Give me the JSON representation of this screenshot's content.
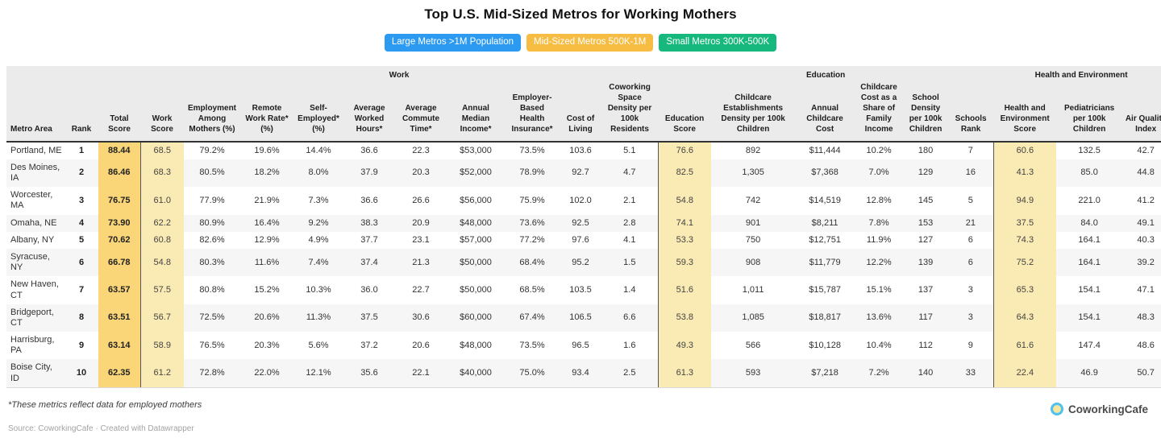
{
  "title": "Top U.S. Mid-Sized Metros for Working Mothers",
  "tabs": [
    {
      "name": "large-metros",
      "label": "Large Metros >1M Population",
      "color": "#2b9af0"
    },
    {
      "name": "mid-sized-metros",
      "label": "Mid-Sized Metros 500K-1M",
      "color": "#f7bc42"
    },
    {
      "name": "small-metros",
      "label": "Small Metros 300K-500K",
      "color": "#17b87e"
    }
  ],
  "colors": {
    "total_score_bg": "#fad678",
    "score_bg": "#faeab4",
    "header_bg": "#ebebeb",
    "row_alt_bg": "#f6f6f6",
    "group_border": "#555555",
    "header_rule": "#333333"
  },
  "chart_data": {
    "type": "table",
    "title": "Top U.S. Mid-Sized Metros for Working Mothers",
    "column_groups": [
      {
        "label": "",
        "span": 3
      },
      {
        "label": "Work",
        "span": 10
      },
      {
        "label": "Education",
        "span": 6
      },
      {
        "label": "Health and Environment",
        "span": 3
      }
    ],
    "columns": [
      "Metro Area",
      "Rank",
      "Total Score",
      "Work Score",
      "Employment Among Mothers (%)",
      "Remote Work Rate* (%)",
      "Self-Employed* (%)",
      "Average Worked Hours*",
      "Average Commute Time*",
      "Annual Median Income*",
      "Employer-Based Health Insurance*",
      "Cost of Living",
      "Coworking Space Density per 100k Residents",
      "Education Score",
      "Childcare Establishments Density per 100k Children",
      "Annual Childcare Cost",
      "Childcare Cost as a Share of Family Income",
      "School Density per 100k Children",
      "Schools Rank",
      "Health and Environment Score",
      "Pediatricians per 100k Children",
      "Air Quality Index"
    ],
    "rows": [
      [
        "Portland, ME",
        "1",
        "88.44",
        "68.5",
        "79.2%",
        "19.6%",
        "14.4%",
        "36.6",
        "22.3",
        "$53,000",
        "73.5%",
        "103.6",
        "5.1",
        "76.6",
        "892",
        "$11,444",
        "10.2%",
        "180",
        "7",
        "60.6",
        "132.5",
        "42.7"
      ],
      [
        "Des Moines, IA",
        "2",
        "86.46",
        "68.3",
        "80.5%",
        "18.2%",
        "8.0%",
        "37.9",
        "20.3",
        "$52,000",
        "78.9%",
        "92.7",
        "4.7",
        "82.5",
        "1,305",
        "$7,368",
        "7.0%",
        "129",
        "16",
        "41.3",
        "85.0",
        "44.8"
      ],
      [
        "Worcester, MA",
        "3",
        "76.75",
        "61.0",
        "77.9%",
        "21.9%",
        "7.3%",
        "36.6",
        "26.6",
        "$56,000",
        "75.9%",
        "102.0",
        "2.1",
        "54.8",
        "742",
        "$14,519",
        "12.8%",
        "145",
        "5",
        "94.9",
        "221.0",
        "41.2"
      ],
      [
        "Omaha, NE",
        "4",
        "73.90",
        "62.2",
        "80.9%",
        "16.4%",
        "9.2%",
        "38.3",
        "20.9",
        "$48,000",
        "73.6%",
        "92.5",
        "2.8",
        "74.1",
        "901",
        "$8,211",
        "7.8%",
        "153",
        "21",
        "37.5",
        "84.0",
        "49.1"
      ],
      [
        "Albany, NY",
        "5",
        "70.62",
        "60.8",
        "82.6%",
        "12.9%",
        "4.9%",
        "37.7",
        "23.1",
        "$57,000",
        "77.2%",
        "97.6",
        "4.1",
        "53.3",
        "750",
        "$12,751",
        "11.9%",
        "127",
        "6",
        "74.3",
        "164.1",
        "40.3"
      ],
      [
        "Syracuse, NY",
        "6",
        "66.78",
        "54.8",
        "80.3%",
        "11.6%",
        "7.4%",
        "37.4",
        "21.3",
        "$50,000",
        "68.4%",
        "95.2",
        "1.5",
        "59.3",
        "908",
        "$11,779",
        "12.2%",
        "139",
        "6",
        "75.2",
        "164.1",
        "39.2"
      ],
      [
        "New Haven, CT",
        "7",
        "63.57",
        "57.5",
        "80.8%",
        "15.2%",
        "10.3%",
        "36.0",
        "22.7",
        "$50,000",
        "68.5%",
        "103.5",
        "1.4",
        "51.6",
        "1,011",
        "$15,787",
        "15.1%",
        "137",
        "3",
        "65.3",
        "154.1",
        "47.1"
      ],
      [
        "Bridgeport, CT",
        "8",
        "63.51",
        "56.7",
        "72.5%",
        "20.6%",
        "11.3%",
        "37.5",
        "30.6",
        "$60,000",
        "67.4%",
        "106.5",
        "6.6",
        "53.8",
        "1,085",
        "$18,817",
        "13.6%",
        "117",
        "3",
        "64.3",
        "154.1",
        "48.3"
      ],
      [
        "Harrisburg, PA",
        "9",
        "63.14",
        "58.9",
        "76.5%",
        "20.3%",
        "5.6%",
        "37.2",
        "20.6",
        "$48,000",
        "73.5%",
        "96.5",
        "1.6",
        "49.3",
        "566",
        "$10,128",
        "10.4%",
        "112",
        "9",
        "61.6",
        "147.4",
        "48.6"
      ],
      [
        "Boise City, ID",
        "10",
        "62.35",
        "61.2",
        "72.8%",
        "22.0%",
        "12.1%",
        "35.6",
        "22.1",
        "$40,000",
        "75.0%",
        "93.4",
        "2.5",
        "61.3",
        "593",
        "$7,218",
        "7.2%",
        "140",
        "33",
        "22.4",
        "46.9",
        "50.7"
      ]
    ]
  },
  "footnote": "*These metrics reflect data for employed mothers",
  "source": "Source: CoworkingCafe · Created with Datawrapper",
  "logo_text": "CoworkingCafe"
}
